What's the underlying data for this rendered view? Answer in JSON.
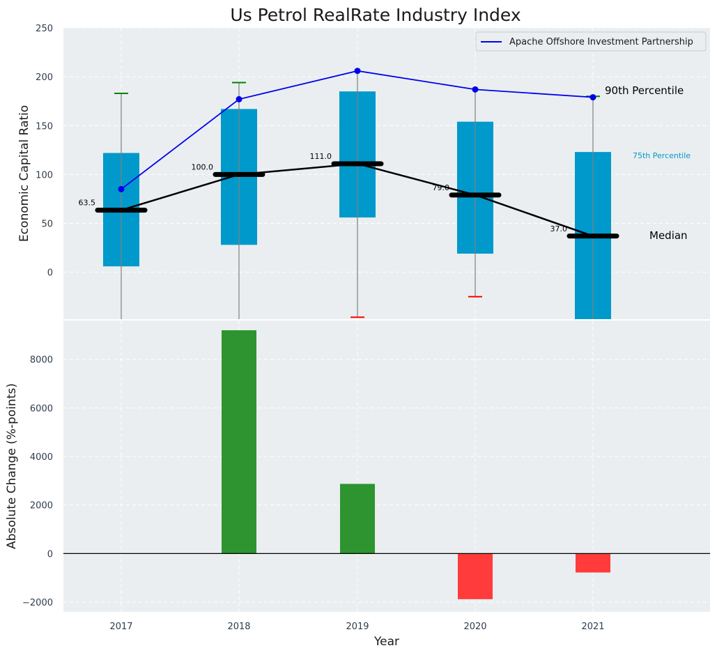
{
  "chart_data": [
    {
      "type": "box",
      "title": "Us Petrol RealRate Industry Index",
      "xlabel": "",
      "ylabel": "Economic Capital Ratio",
      "ylim": [
        -48,
        250
      ],
      "yticks": [
        0,
        50,
        100,
        150,
        200,
        250
      ],
      "categories": [
        "2017",
        "2018",
        "2019",
        "2020",
        "2021"
      ],
      "boxes": [
        {
          "year": "2017",
          "q1": 6,
          "q3": 122,
          "median": 63.5,
          "whisker_low": -48,
          "whisker_high": 183,
          "cap_high_color": "#008000",
          "cap_low_color": null,
          "median_label": "63.5"
        },
        {
          "year": "2018",
          "q1": 28,
          "q3": 167,
          "median": 100.0,
          "whisker_low": -48,
          "whisker_high": 194,
          "cap_high_color": "#008000",
          "cap_low_color": null,
          "median_label": "100.0"
        },
        {
          "year": "2019",
          "q1": 56,
          "q3": 185,
          "median": 111.0,
          "whisker_low": -46,
          "whisker_high": 206,
          "cap_high_color": null,
          "cap_low_color": "#ff0000",
          "median_label": "111.0"
        },
        {
          "year": "2020",
          "q1": 19,
          "q3": 154,
          "median": 79.0,
          "whisker_low": -25,
          "whisker_high": 187,
          "cap_high_color": null,
          "cap_low_color": "#ff0000",
          "median_label": "79.0"
        },
        {
          "year": "2021",
          "q1": -48,
          "q3": 123,
          "median": 37.0,
          "whisker_low": -48,
          "whisker_high": 180,
          "cap_high_color": "#008000",
          "cap_low_color": null,
          "median_label": "37.0"
        }
      ],
      "series": [
        {
          "name": "Apache Offshore Investment Partnership",
          "color": "#0000ee",
          "values": [
            85,
            177,
            206,
            187,
            179
          ]
        },
        {
          "name": "Median",
          "color": "#000000",
          "values": [
            63.5,
            100.0,
            111.0,
            79.0,
            37.0
          ]
        }
      ],
      "box_color": "#0099cc",
      "legend": {
        "position": "top-right",
        "entries": [
          "Apache Offshore Investment Partnership"
        ]
      },
      "annotations": [
        {
          "text": "90th Percentile",
          "color": "#000000"
        },
        {
          "text": "75th Percentile",
          "color": "#0099cc"
        },
        {
          "text": "Median",
          "color": "#000000"
        }
      ]
    },
    {
      "type": "bar",
      "title": "",
      "xlabel": "Year",
      "ylabel": "Absolute Change (%-points)",
      "ylim": [
        -2400,
        9600
      ],
      "yticks": [
        -2000,
        0,
        2000,
        4000,
        6000,
        8000
      ],
      "ytick_labels": [
        "−2000",
        "0",
        "2000",
        "4000",
        "6000",
        "8000"
      ],
      "categories": [
        "2017",
        "2018",
        "2019",
        "2020",
        "2021"
      ],
      "values": [
        0,
        9200,
        2870,
        -1880,
        -780
      ],
      "positive_color": "#2e9430",
      "negative_color": "#ff3b3b"
    }
  ]
}
